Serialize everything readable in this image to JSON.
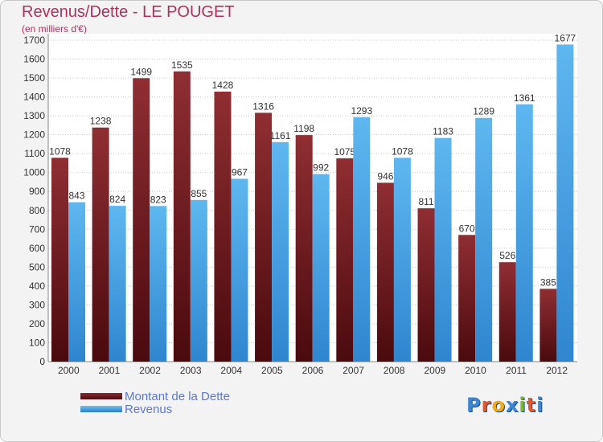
{
  "title": "Revenus/Dette - LE POUGET",
  "subtitle": "(en milliers d'€)",
  "logo": {
    "text": "Proxiti"
  },
  "legend": [
    {
      "label": "Montant de la Dette",
      "color": "#7a1f24"
    },
    {
      "label": "Revenus",
      "color": "#4aa3e6"
    }
  ],
  "chart_data": {
    "type": "bar",
    "title": "Revenus/Dette - LE POUGET",
    "ylabel": "(en milliers d'€)",
    "ylim": [
      0,
      1700
    ],
    "yticks": [
      0,
      100,
      200,
      300,
      400,
      500,
      600,
      700,
      800,
      900,
      1000,
      1100,
      1200,
      1300,
      1400,
      1500,
      1600,
      1700
    ],
    "grid": true,
    "legend_position": "bottom-left",
    "categories": [
      "2000",
      "2001",
      "2002",
      "2003",
      "2004",
      "2005",
      "2006",
      "2007",
      "2008",
      "2009",
      "2010",
      "2011",
      "2012"
    ],
    "series": [
      {
        "name": "Montant de la Dette",
        "color": "#7a1f24",
        "values": [
          1078,
          1238,
          1499,
          1535,
          1428,
          1316,
          1198,
          1075,
          946,
          811,
          670,
          526,
          385
        ]
      },
      {
        "name": "Revenus",
        "color": "#4aa3e6",
        "values": [
          843,
          824,
          823,
          855,
          967,
          1161,
          992,
          1293,
          1078,
          1183,
          1289,
          1361,
          1677
        ]
      }
    ]
  }
}
